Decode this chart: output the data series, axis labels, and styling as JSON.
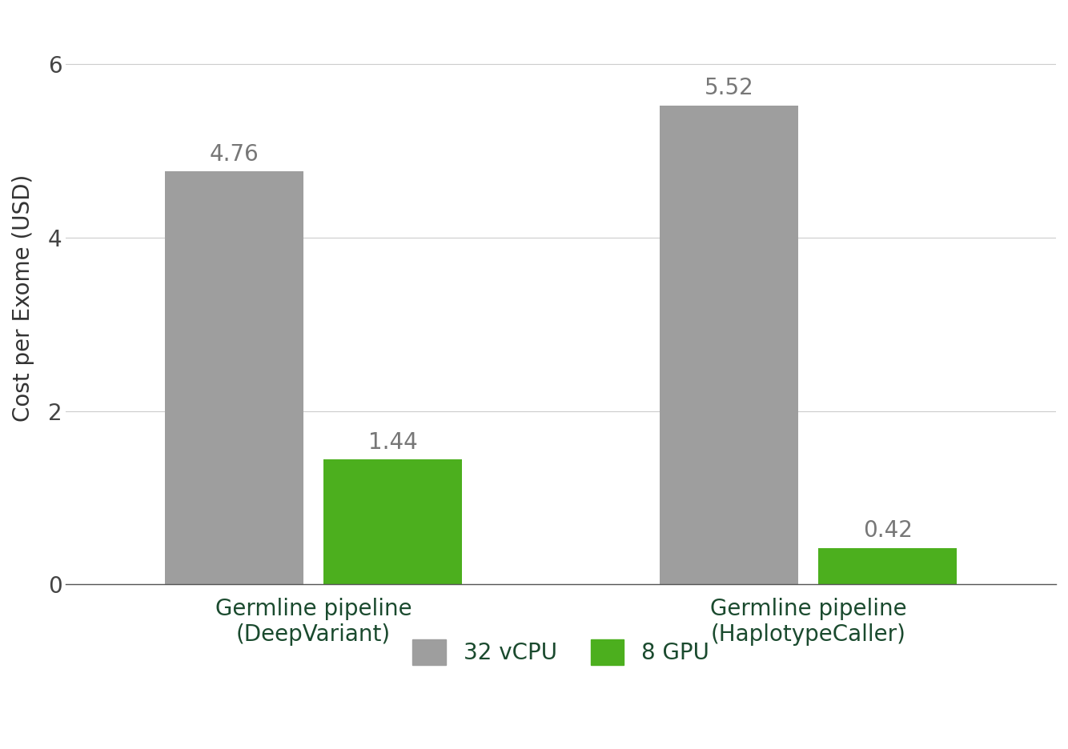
{
  "groups": [
    "Germline pipeline\n(DeepVariant)",
    "Germline pipeline\n(HaplotypeCaller)"
  ],
  "vcpu_values": [
    4.76,
    5.52
  ],
  "gpu_values": [
    1.44,
    0.42
  ],
  "vcpu_color": "#9e9e9e",
  "gpu_color": "#4caf1e",
  "ylabel": "Cost per Exome (USD)",
  "ylim": [
    0,
    6.6
  ],
  "yticks": [
    0,
    2,
    4,
    6
  ],
  "legend_labels": [
    "32 vCPU",
    "8 GPU"
  ],
  "bar_width": 0.28,
  "label_fontsize": 20,
  "tick_fontsize": 20,
  "value_label_fontsize": 20,
  "legend_fontsize": 20,
  "background_color": "#ffffff",
  "grid_color": "#cccccc",
  "text_color": "#1a4a2e",
  "value_color": "#777777"
}
